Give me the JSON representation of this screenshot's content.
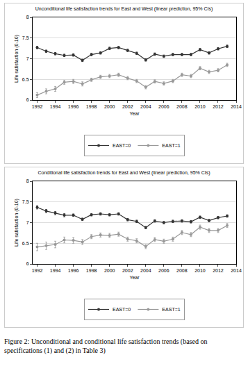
{
  "caption": "Figure 2: Unconditional and conditional life satisfaction trends (based on specifications (1) and (2) in Table 3)",
  "chart_data": [
    {
      "type": "line",
      "title": "Unconditional life satisfaction trends for East and West (linear prediction, 95% CIs)",
      "x_label": "Year",
      "y_label": "Life satisfaction (0-10)",
      "x": [
        1992,
        1993,
        1994,
        1995,
        1996,
        1997,
        1998,
        1999,
        2000,
        2001,
        2002,
        2003,
        2004,
        2005,
        2006,
        2007,
        2008,
        2009,
        2010,
        2011,
        2012,
        2013
      ],
      "series": [
        {
          "name": "EAST=0",
          "color": "#333333",
          "marker": "circle",
          "values": [
            7.27,
            7.18,
            7.12,
            7.08,
            7.09,
            6.96,
            7.1,
            7.14,
            7.25,
            7.27,
            7.2,
            7.13,
            6.97,
            7.11,
            7.06,
            7.1,
            7.1,
            7.1,
            7.22,
            7.14,
            7.24,
            7.3
          ],
          "errors": [
            0.03,
            0.03,
            0.03,
            0.03,
            0.03,
            0.03,
            0.03,
            0.03,
            0.03,
            0.03,
            0.03,
            0.03,
            0.03,
            0.03,
            0.03,
            0.03,
            0.03,
            0.03,
            0.03,
            0.03,
            0.03,
            0.03
          ]
        },
        {
          "name": "EAST=1",
          "color": "#999999",
          "marker": "circle",
          "values": [
            6.12,
            6.21,
            6.27,
            6.43,
            6.45,
            6.39,
            6.49,
            6.56,
            6.58,
            6.61,
            6.53,
            6.46,
            6.31,
            6.45,
            6.4,
            6.46,
            6.61,
            6.58,
            6.77,
            6.68,
            6.72,
            6.85
          ],
          "errors": [
            0.06,
            0.06,
            0.06,
            0.05,
            0.05,
            0.05,
            0.04,
            0.04,
            0.04,
            0.04,
            0.04,
            0.04,
            0.04,
            0.04,
            0.04,
            0.04,
            0.04,
            0.04,
            0.04,
            0.04,
            0.04,
            0.04
          ]
        }
      ],
      "xlim": [
        1991.5,
        2014
      ],
      "xticks": [
        1992,
        1994,
        1996,
        1998,
        2000,
        2002,
        2004,
        2006,
        2008,
        2010,
        2012,
        2014
      ],
      "ylim": [
        6,
        8
      ],
      "yticks": [
        6,
        6.5,
        7,
        7.5,
        8
      ],
      "grid": true,
      "legend": "bottom"
    },
    {
      "type": "line",
      "title": "Conditional life satisfaction trends for East and West (linear prediction, 95% CIs)",
      "x_label": "Year",
      "y_label": "Life satisfaction (0-10)",
      "x": [
        1992,
        1993,
        1994,
        1995,
        1996,
        1997,
        1998,
        1999,
        2000,
        2001,
        2002,
        2003,
        2004,
        2005,
        2006,
        2007,
        2008,
        2009,
        2010,
        2011,
        2012,
        2013
      ],
      "series": [
        {
          "name": "EAST=0",
          "color": "#333333",
          "marker": "circle",
          "values": [
            7.37,
            7.28,
            7.23,
            7.18,
            7.18,
            7.08,
            7.19,
            7.21,
            7.19,
            7.21,
            7.07,
            7.03,
            6.88,
            7.04,
            7.0,
            7.03,
            7.04,
            7.02,
            7.13,
            7.05,
            7.12,
            7.16
          ],
          "errors": [
            0.04,
            0.04,
            0.04,
            0.04,
            0.03,
            0.03,
            0.03,
            0.03,
            0.03,
            0.03,
            0.03,
            0.03,
            0.03,
            0.03,
            0.03,
            0.03,
            0.03,
            0.03,
            0.03,
            0.03,
            0.03,
            0.03
          ]
        },
        {
          "name": "EAST=1",
          "color": "#999999",
          "marker": "circle",
          "values": [
            6.41,
            6.44,
            6.47,
            6.58,
            6.57,
            6.53,
            6.66,
            6.7,
            6.69,
            6.72,
            6.6,
            6.56,
            6.42,
            6.59,
            6.55,
            6.6,
            6.76,
            6.71,
            6.89,
            6.81,
            6.81,
            6.93
          ],
          "errors": [
            0.09,
            0.09,
            0.08,
            0.07,
            0.07,
            0.06,
            0.05,
            0.05,
            0.05,
            0.05,
            0.05,
            0.05,
            0.05,
            0.05,
            0.05,
            0.05,
            0.05,
            0.05,
            0.05,
            0.05,
            0.05,
            0.05
          ]
        }
      ],
      "xlim": [
        1991.5,
        2014
      ],
      "xticks": [
        1992,
        1994,
        1996,
        1998,
        2000,
        2002,
        2004,
        2006,
        2008,
        2010,
        2012,
        2014
      ],
      "ylim": [
        6,
        8
      ],
      "yticks": [
        6,
        6.5,
        7,
        7.5,
        8
      ],
      "grid": true,
      "legend": "bottom"
    }
  ]
}
